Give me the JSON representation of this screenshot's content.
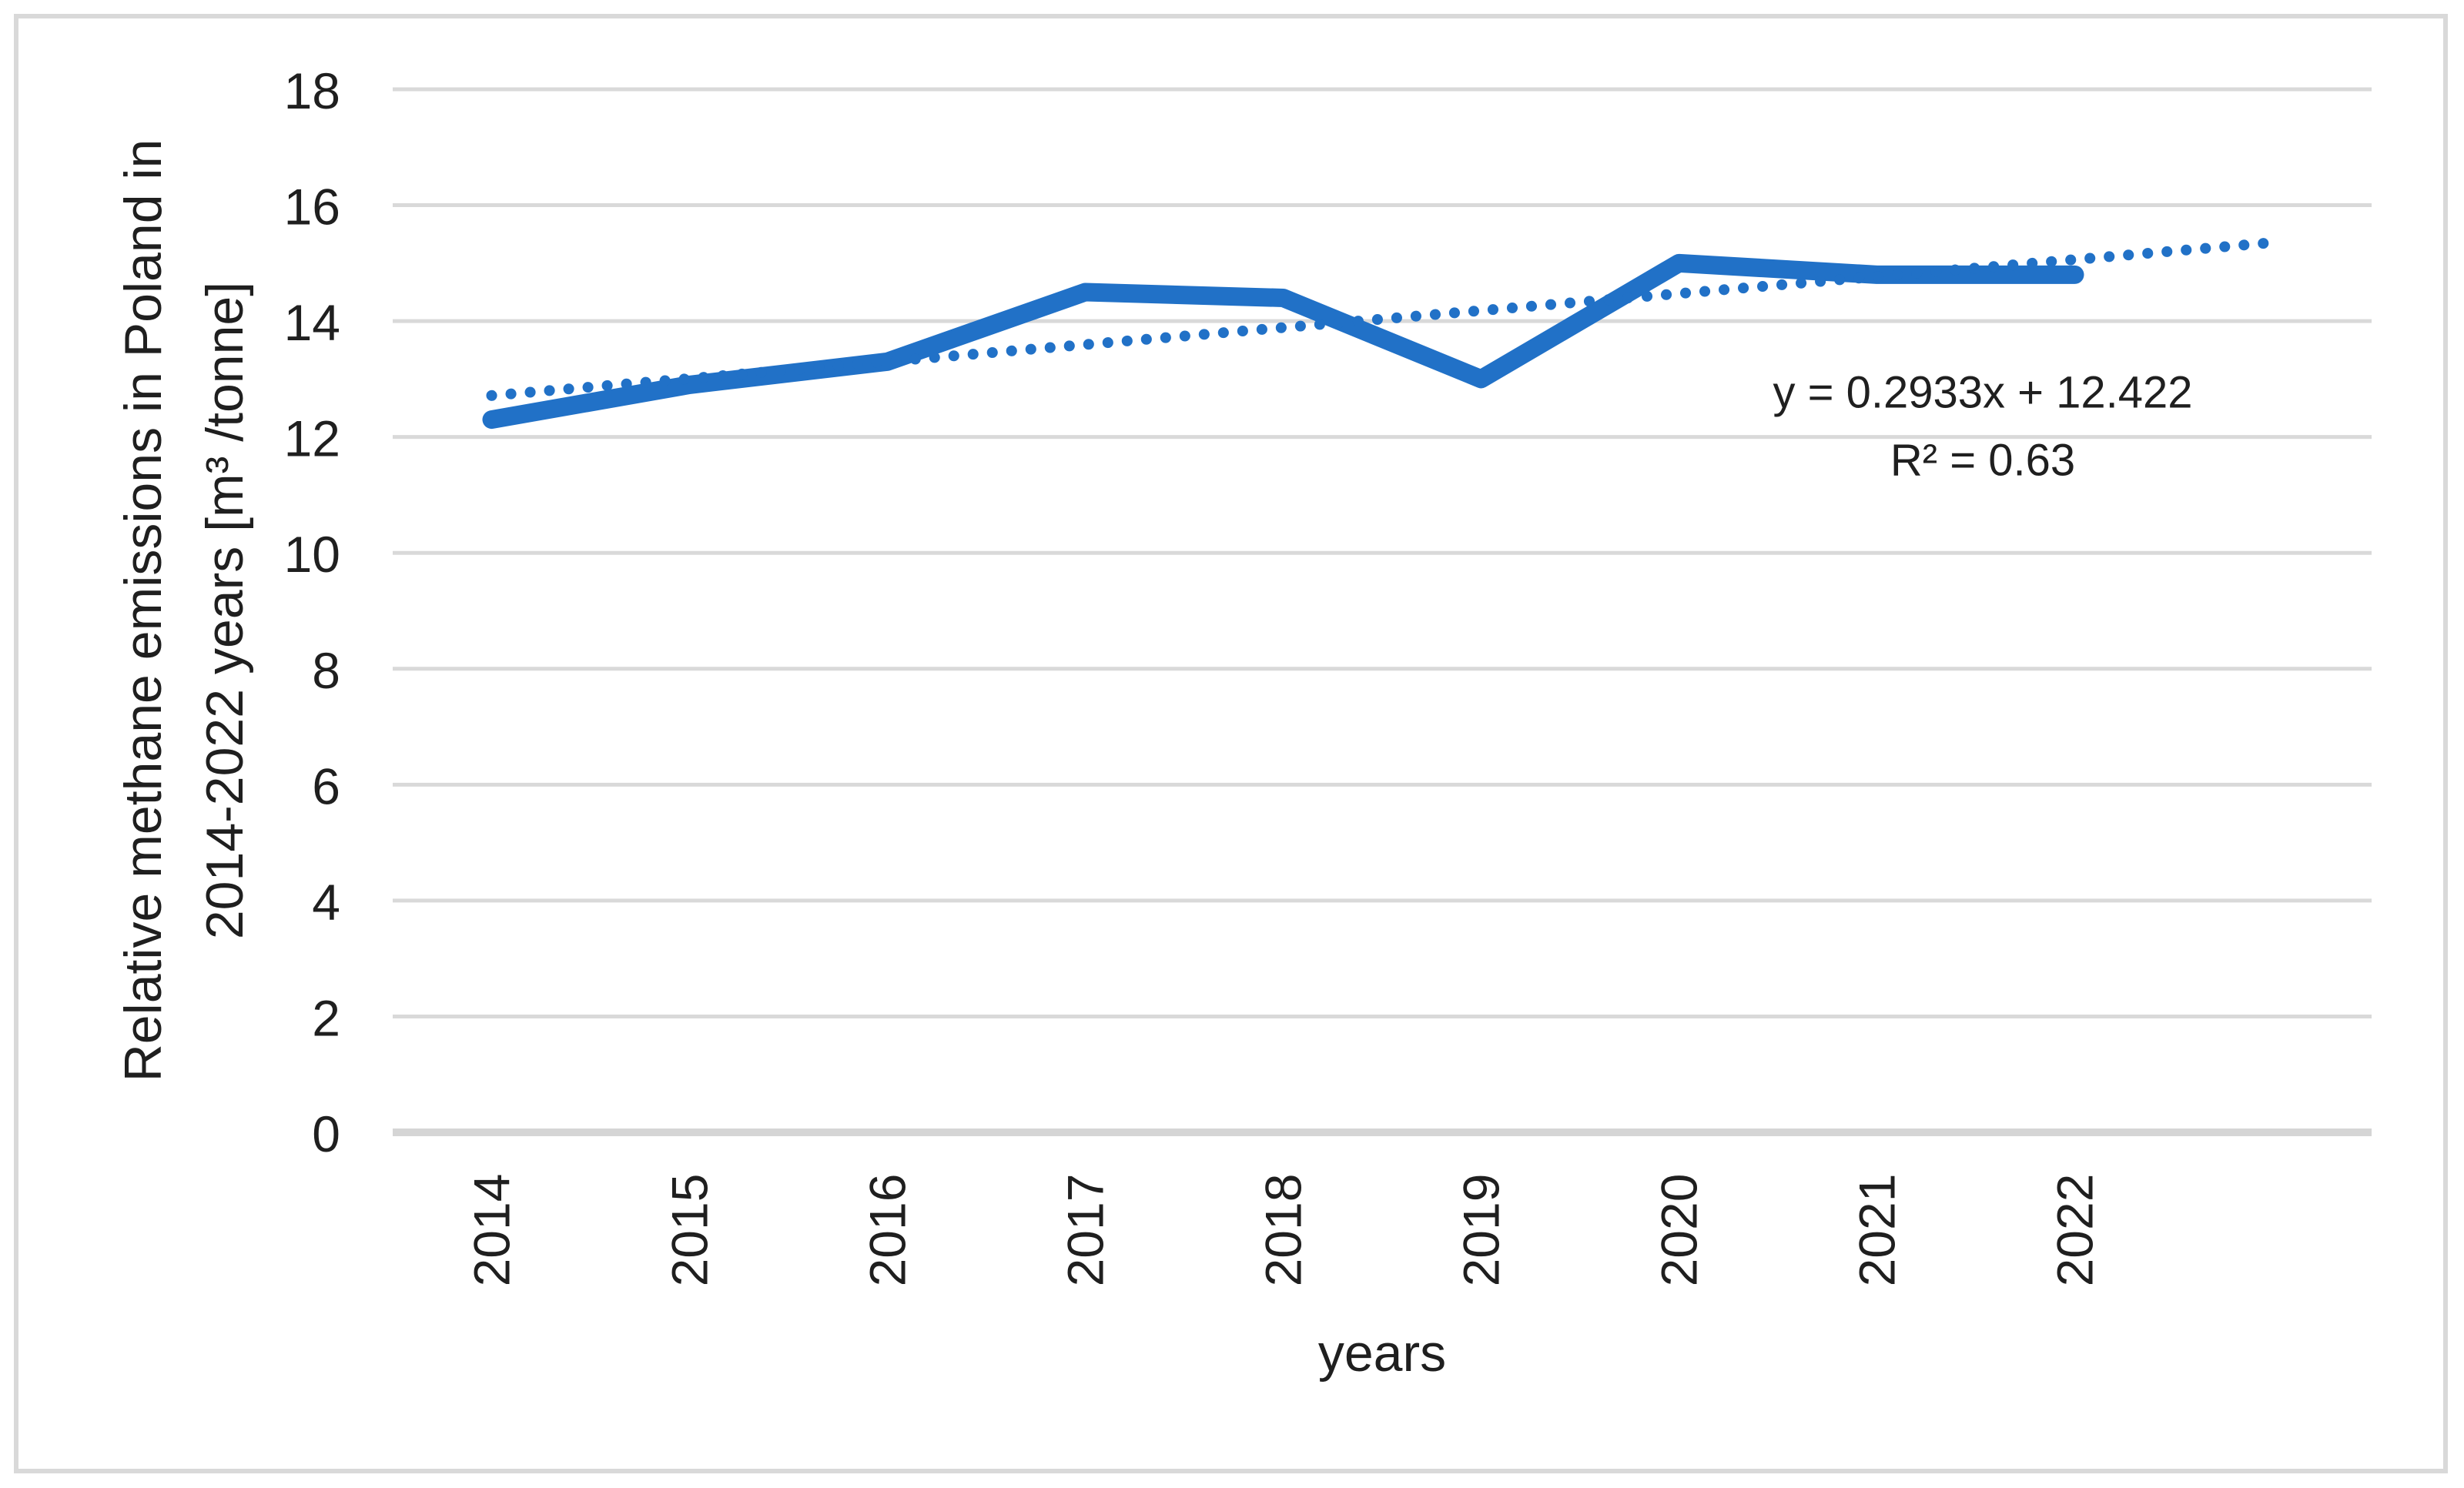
{
  "figure": {
    "background": "#FFFFFF",
    "border_color": "#D9D9D9"
  },
  "chart_data": {
    "type": "line",
    "title": "",
    "categories": [
      "2014",
      "2015",
      "2016",
      "2017",
      "2018",
      "2019",
      "2020",
      "2021",
      "2022"
    ],
    "series": [
      {
        "name": "Relative methane emissions in Poland",
        "values": [
          12.3,
          12.9,
          13.3,
          14.5,
          14.4,
          13.0,
          15.0,
          14.8,
          14.8
        ],
        "color": "#2171C7",
        "style": "solid"
      }
    ],
    "trendline": {
      "equation_label": "y = 0.2933x + 12.422",
      "r2_label": "R² = 0.63",
      "slope": 0.2933,
      "intercept": 12.422,
      "forecast_periods": 1,
      "color": "#2171C7",
      "style": "dotted"
    },
    "xlabel": "years",
    "ylabel_line1": "Relative methane emissions in Poland in",
    "ylabel_line2": "2014-2022 years [m³ /tonne]",
    "y_axis": {
      "min": 0,
      "max": 18,
      "step": 2,
      "tick_labels": [
        "0",
        "2",
        "4",
        "6",
        "8",
        "10",
        "12",
        "14",
        "16",
        "18"
      ]
    },
    "grid": true,
    "gridline_color": "#D9D9D9",
    "axisline_color": "#D5D5D5",
    "text_color": "#1F1F1F",
    "legend_position": "none"
  }
}
